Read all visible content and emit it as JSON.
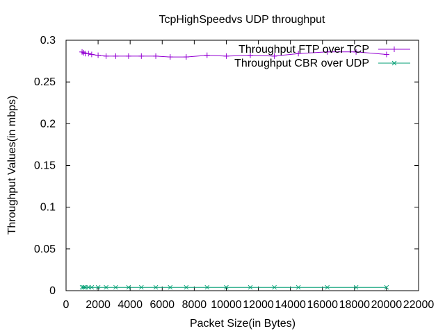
{
  "chart_data": {
    "type": "line",
    "title": "TcpHighSpeedvs UDP throughput",
    "xlabel": "Packet Size(in Bytes)",
    "ylabel": "Throughput Values(in mbps)",
    "xlim": [
      0,
      22000
    ],
    "ylim": [
      0,
      0.3
    ],
    "x_ticks": [
      0,
      2000,
      4000,
      6000,
      8000,
      10000,
      12000,
      14000,
      16000,
      18000,
      20000,
      22000
    ],
    "x_tick_labels": [
      "0",
      "2000",
      "4000",
      "6000",
      "8000",
      "10000",
      "12000",
      "14000",
      "16000",
      "18000",
      "20000",
      "22000"
    ],
    "y_ticks": [
      0,
      0.05,
      0.1,
      0.15,
      0.2,
      0.25,
      0.3
    ],
    "y_tick_labels": [
      "0",
      "0.05",
      "0.1",
      "0.15",
      "0.2",
      "0.25",
      "0.3"
    ],
    "grid": false,
    "legend_position": "top-right",
    "series": [
      {
        "name": "Throughput FTP over TCP",
        "color": "#9400d3",
        "marker": "plus",
        "x": [
          1000,
          1100,
          1200,
          1400,
          1600,
          2000,
          2500,
          3100,
          3900,
          4700,
          5600,
          6500,
          7500,
          8800,
          10000,
          11500,
          13000,
          14500,
          16300,
          18100,
          20000
        ],
        "y": [
          0.286,
          0.285,
          0.284,
          0.284,
          0.283,
          0.282,
          0.281,
          0.281,
          0.281,
          0.281,
          0.281,
          0.28,
          0.28,
          0.282,
          0.281,
          0.282,
          0.281,
          0.284,
          0.286,
          0.286,
          0.283
        ]
      },
      {
        "name": "Throughput CBR over UDP",
        "color": "#009e73",
        "marker": "cross",
        "x": [
          1000,
          1100,
          1200,
          1400,
          1600,
          2000,
          2500,
          3100,
          3900,
          4700,
          5600,
          6500,
          7500,
          8800,
          10000,
          11500,
          13000,
          14500,
          16300,
          18100,
          20000
        ],
        "y": [
          0.004,
          0.004,
          0.004,
          0.004,
          0.004,
          0.004,
          0.004,
          0.004,
          0.004,
          0.004,
          0.004,
          0.004,
          0.004,
          0.004,
          0.004,
          0.004,
          0.004,
          0.004,
          0.004,
          0.004,
          0.004
        ]
      }
    ]
  }
}
